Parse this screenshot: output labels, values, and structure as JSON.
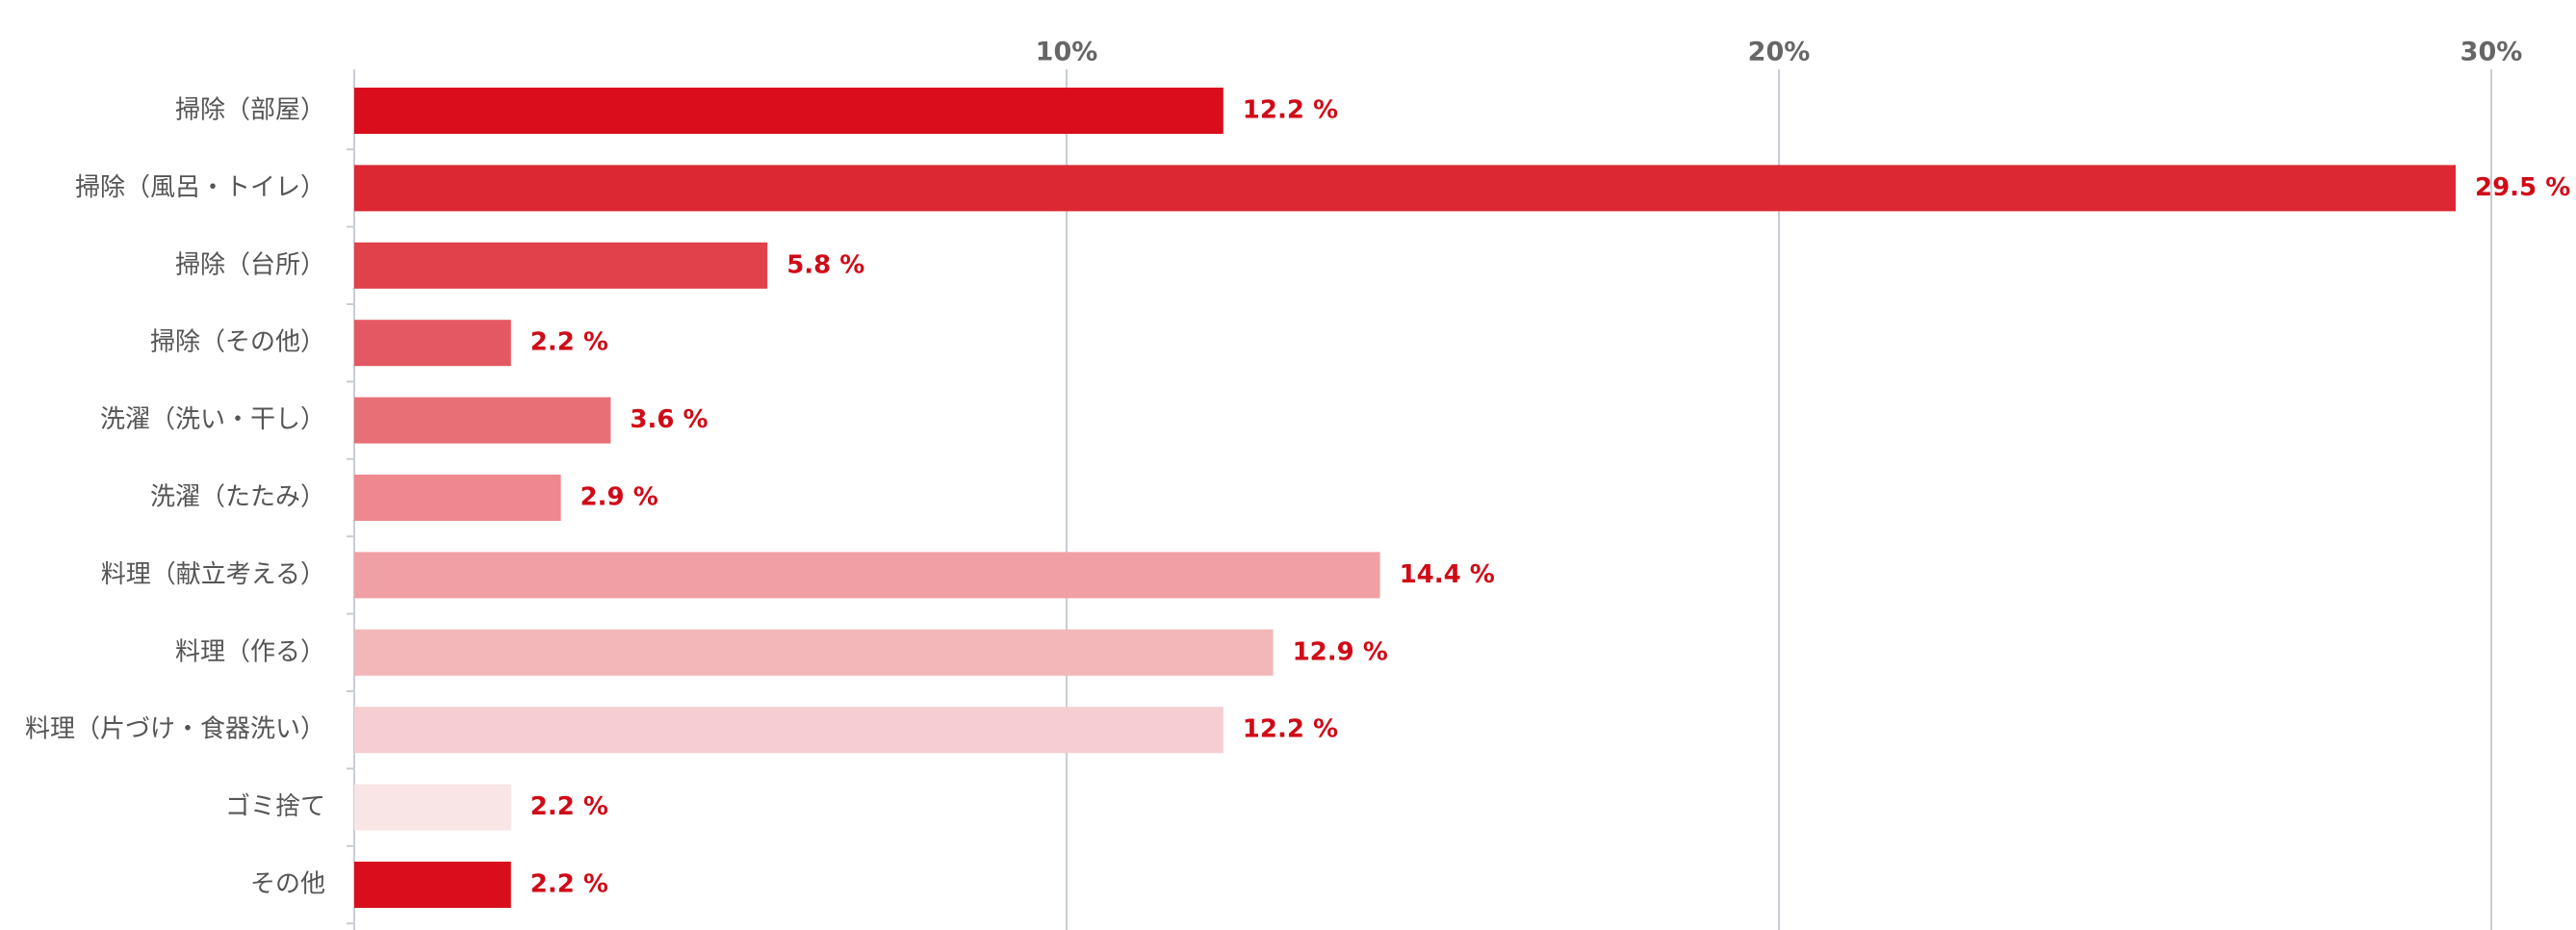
{
  "chart_data": {
    "type": "hbar",
    "categories": [
      "掃除（部屋）",
      "掃除（風呂・トイレ）",
      "掃除（台所）",
      "掃除（その他）",
      "洗濯（洗い・干し）",
      "洗濯（たたみ）",
      "料理（献立考える）",
      "料理（作る）",
      "料理（片づけ・食器洗い）",
      "ゴミ捨て",
      "その他"
    ],
    "values": [
      12.2,
      29.5,
      5.8,
      2.2,
      3.6,
      2.9,
      14.4,
      12.9,
      12.2,
      2.2,
      2.2
    ],
    "value_labels": [
      "12.2 %",
      "29.5 %",
      "5.8 %",
      "2.2 %",
      "3.6 %",
      "2.9 %",
      "14.4 %",
      "12.9 %",
      "12.2 %",
      "2.2 %",
      "2.2 %"
    ],
    "colors": [
      "#d90d1c",
      "#dc2832",
      "#e0414a",
      "#e45863",
      "#e96f77",
      "#ee888e",
      "#f0a0a4",
      "#f3b6b9",
      "#f6ced1",
      "#f9e5e6",
      "#d90d1c"
    ],
    "xlim": [
      0,
      31
    ],
    "xticks": [
      {
        "value": 10,
        "label": "10%"
      },
      {
        "value": 20,
        "label": "20%"
      },
      {
        "value": 30,
        "label": "30%"
      }
    ],
    "grid": true
  }
}
